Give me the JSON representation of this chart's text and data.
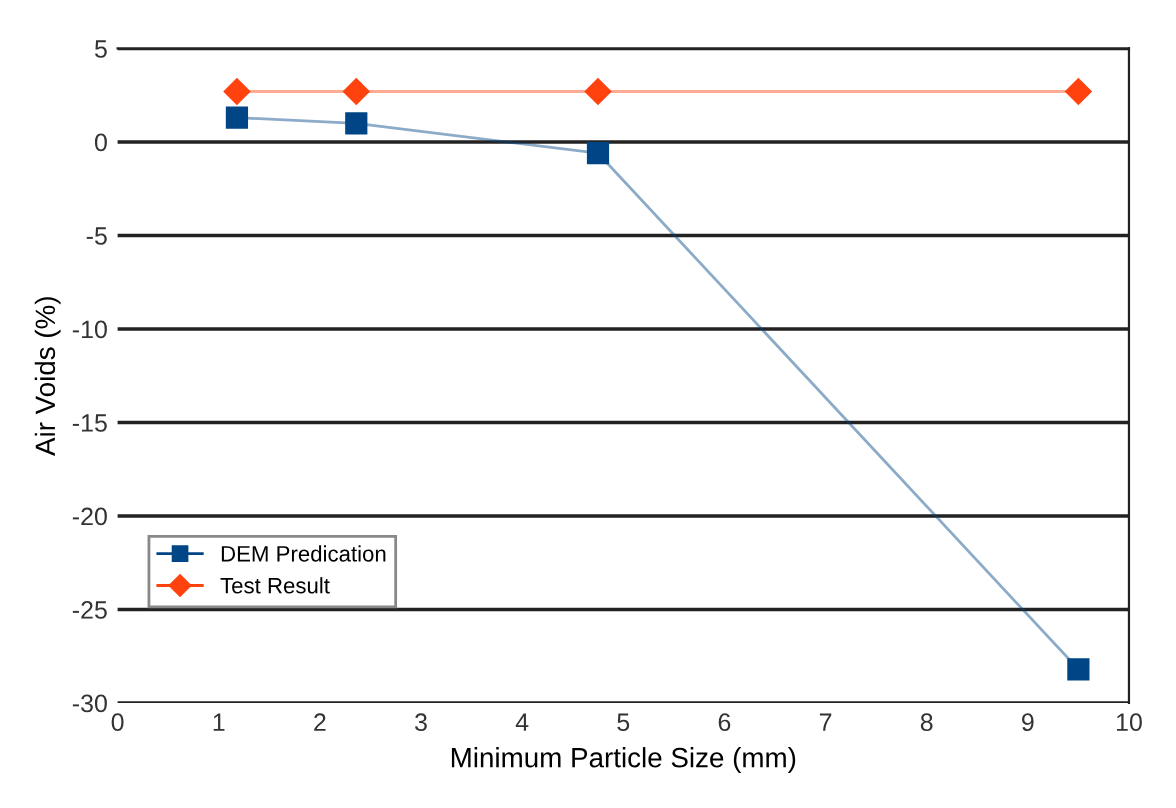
{
  "chart_data": {
    "type": "line",
    "xlabel": "Minimum Particle Size (mm)",
    "ylabel": "Air Voids (%)",
    "xlim": [
      0,
      10
    ],
    "xticks": [
      0,
      1,
      2,
      3,
      4,
      5,
      6,
      7,
      8,
      9,
      10
    ],
    "ylim": [
      -30,
      5
    ],
    "yticks": [
      -30,
      -25,
      -20,
      -15,
      -10,
      -5,
      0,
      5
    ],
    "grid": "y",
    "legend": "bottom left",
    "line_style": "solid",
    "series": [
      {
        "name": "DEM Predication",
        "color": "#004586",
        "marker": "square",
        "x": [
          1.18,
          2.36,
          4.75,
          9.5
        ],
        "values": [
          1.3,
          1.0,
          -0.6,
          -28.2
        ]
      },
      {
        "name": "Test Result",
        "color": "#ff420e",
        "marker": "diamond",
        "x": [
          1.18,
          2.36,
          4.75,
          9.5
        ],
        "values": [
          2.7,
          2.7,
          2.7,
          2.7
        ]
      }
    ]
  }
}
